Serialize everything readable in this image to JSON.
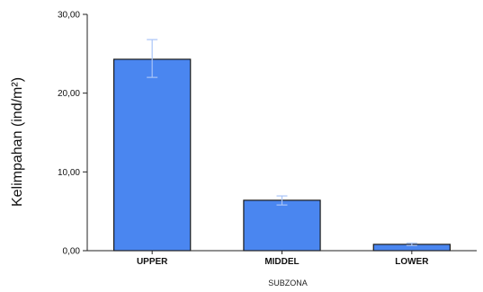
{
  "chart_data": {
    "type": "bar",
    "categories": [
      "UPPER",
      "MIDDEL",
      "LOWER"
    ],
    "values": [
      24.3,
      6.4,
      0.8
    ],
    "error_low": [
      22.0,
      5.8,
      0.65
    ],
    "error_high": [
      26.8,
      6.95,
      0.95
    ],
    "ylim": [
      0,
      30
    ],
    "yticks": [
      "0,00",
      "10,00",
      "20,00",
      "30,00"
    ],
    "xlabel": "SUBZONA",
    "ylabel": "Kelimpahan (ind/m²)",
    "grid": false,
    "colors": {
      "bar": "#4a86f0",
      "bar_edge": "#1a1a1a",
      "error": "#a9c4f7",
      "axis": "#222222"
    }
  }
}
